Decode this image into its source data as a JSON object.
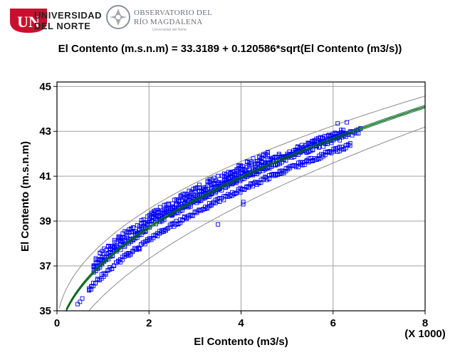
{
  "header": {
    "university_line1": "UNIVERSIDAD",
    "university_line2": "DEL NORTE",
    "observatory_line1": "OBSERVATORIO DEL",
    "observatory_line2": "RÍO MAGDALENA",
    "observatory_sub": "Universidad del Norte",
    "colors": {
      "university_red": "#c8102e",
      "observatory_gray": "#6d6f7a"
    }
  },
  "chart_data": {
    "type": "scatter",
    "title": "El Contento (m.s.n.m) = 33.3189 + 0.120586*sqrt(El Contento (m3/s))",
    "xlabel": "El Contento (m3/s)",
    "ylabel": "El Contento (m.s.n.m)",
    "x_multiplier_label": "(X 1000)",
    "xlim": [
      0,
      8
    ],
    "ylim": [
      35,
      45.2
    ],
    "x_ticks": [
      0,
      2,
      4,
      6,
      8
    ],
    "y_ticks": [
      35,
      37,
      39,
      41,
      43,
      45
    ],
    "grid": true,
    "model": {
      "intercept": 33.3189,
      "slope": 0.120586,
      "form": "y = a + b*sqrt(1000*x)"
    },
    "series": [
      {
        "marker": "open-square",
        "color": "#0000ff",
        "clusters": [
          {
            "x_range": [
              0.8,
              4.6
            ],
            "y_offset": 0.25,
            "spread": 0.35
          },
          {
            "x_range": [
              4.6,
              6.3
            ],
            "y_offset": 0.15,
            "spread": 0.15
          },
          {
            "x_range": [
              0.7,
              6.4
            ],
            "y_offset": -0.55,
            "spread": 0.1
          },
          {
            "x_range": [
              2.5,
              6.6
            ],
            "y_offset": -0.05,
            "spread": 0.12
          }
        ],
        "outliers": [
          {
            "x": 0.45,
            "y": 35.3
          },
          {
            "x": 0.5,
            "y": 35.4
          },
          {
            "x": 0.55,
            "y": 35.55
          },
          {
            "x": 0.7,
            "y": 36.0
          },
          {
            "x": 0.75,
            "y": 36.1
          },
          {
            "x": 1.8,
            "y": 37.75
          },
          {
            "x": 3.5,
            "y": 38.85
          },
          {
            "x": 4.05,
            "y": 39.75
          },
          {
            "x": 4.05,
            "y": 39.85
          },
          {
            "x": 4.85,
            "y": 41.1
          },
          {
            "x": 6.1,
            "y": 43.35
          },
          {
            "x": 6.3,
            "y": 43.4
          }
        ]
      }
    ],
    "fit_line": {
      "color": "#006400",
      "style": "solid"
    },
    "confidence_band_color": "#0b6b3a",
    "prediction_band_color": "#8c8c8c"
  }
}
